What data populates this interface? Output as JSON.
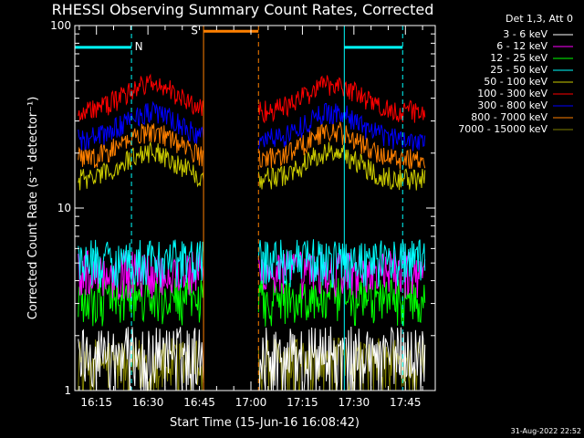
{
  "chart_data": {
    "type": "line",
    "title": "RHESSI Observing Summary Count Rates, Corrected",
    "xlabel": "Start Time (15-Jun-16 16:08:42)",
    "ylabel": "Corrected Count Rate (s⁻¹ detector⁻¹)",
    "y_scale": "log",
    "ylim": [
      1,
      100
    ],
    "y_ticks": [
      {
        "value": 1,
        "label": "1"
      },
      {
        "value": 10,
        "label": "10"
      },
      {
        "value": 100,
        "label": "100"
      }
    ],
    "xlim_minutes": [
      0,
      105
    ],
    "x_ticks": [
      {
        "minute": 6.3,
        "label": "16:15"
      },
      {
        "minute": 21.3,
        "label": "16:30"
      },
      {
        "minute": 36.3,
        "label": "16:45"
      },
      {
        "minute": 51.3,
        "label": "17:00"
      },
      {
        "minute": 66.3,
        "label": "17:15"
      },
      {
        "minute": 81.3,
        "label": "17:30"
      },
      {
        "minute": 96.3,
        "label": "17:45"
      }
    ],
    "legend_header": "Det 1,3, Att 0",
    "legend_position": "right",
    "series": [
      {
        "name": "3 - 6 keV",
        "color": "#ffffff",
        "level": 1.5
      },
      {
        "name": "6 - 12 keV",
        "color": "#ff00ff",
        "level": 4.5
      },
      {
        "name": "12 - 25 keV",
        "color": "#00ff00",
        "level": 3.2
      },
      {
        "name": "25 - 50 keV",
        "color": "#00ffff",
        "level": 5.2
      },
      {
        "name": "50 - 100 keV",
        "color": "#cccc00",
        "level": 17
      },
      {
        "name": "100 - 300 keV",
        "color": "#ff0000",
        "level": 40
      },
      {
        "name": "300 - 800 keV",
        "color": "#0000ff",
        "level": 28
      },
      {
        "name": "800 - 7000 keV",
        "color": "#ff8000",
        "level": 22
      },
      {
        "name": "7000 - 15000 keV",
        "color": "#808000",
        "level": 1.3
      }
    ],
    "data_gap_minutes": [
      37.5,
      53.5
    ],
    "flags": [
      {
        "label": "N",
        "color": "#00ffff",
        "level": 76,
        "segments": [
          [
            0,
            16.5
          ],
          [
            78.5,
            95.5
          ]
        ]
      },
      {
        "label": "S",
        "color": "#ff8000",
        "level": 93,
        "segments": [
          [
            37.5,
            53.5
          ]
        ]
      }
    ],
    "timestamp": "31-Aug-2022 22:52"
  }
}
